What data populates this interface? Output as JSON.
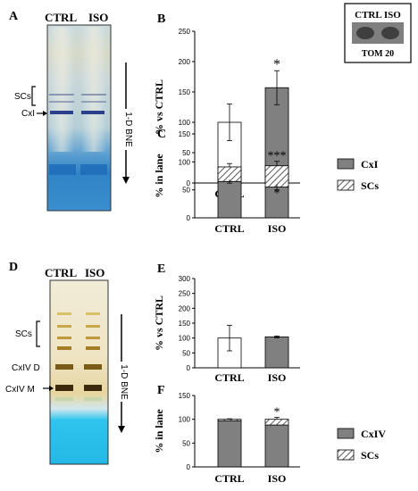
{
  "figure": {
    "panels": {
      "A": {
        "letter": "A",
        "lanes": [
          "CTRL",
          "ISO"
        ],
        "band_labels": [
          "SCs",
          "CxI"
        ],
        "axis_label": "1-D BNE"
      },
      "D": {
        "letter": "D",
        "lanes": [
          "CTRL",
          "ISO"
        ],
        "band_labels": [
          "SCs",
          "CxIV D",
          "CxIV M"
        ],
        "axis_label": "1-D BNE"
      },
      "inset": {
        "header": "CTRL ISO",
        "label": "TOM 20"
      }
    },
    "colors": {
      "ctrl_bar": "#ffffff",
      "iso_bar": "#808080",
      "stacked_base": "#808080",
      "gel_blue": "#2d88c8",
      "gel_cyan": "#1ab8e8"
    }
  },
  "chart_data": [
    {
      "panel": "B",
      "type": "bar",
      "categories": [
        "CTRL",
        "ISO"
      ],
      "values": [
        100,
        157
      ],
      "errors": [
        30,
        28
      ],
      "significance": [
        "",
        "*"
      ],
      "ylabel": "% vs CTRL",
      "yticks": [
        0,
        50,
        100,
        150,
        200,
        250
      ],
      "ylim": [
        0,
        250
      ]
    },
    {
      "panel": "C",
      "type": "bar",
      "stacked": true,
      "categories": [
        "CTRL",
        "ISO"
      ],
      "series": [
        {
          "name": "CxI",
          "values": [
            65,
            55
          ],
          "errors": [
            3,
            5
          ],
          "significance": [
            "",
            "*"
          ]
        },
        {
          "name": "SCs",
          "values": [
            26,
            38
          ],
          "errors": [
            6,
            8
          ],
          "significance": [
            "",
            "***"
          ]
        }
      ],
      "ylabel": "% in lane",
      "yticks": [
        0,
        50,
        100,
        150
      ],
      "ylim": [
        0,
        150
      ],
      "legend": "right"
    },
    {
      "panel": "E",
      "type": "bar",
      "categories": [
        "CTRL",
        "ISO"
      ],
      "values": [
        100,
        104
      ],
      "errors": [
        43,
        3
      ],
      "ylabel": "% vs CTRL",
      "yticks": [
        0,
        50,
        100,
        150,
        200,
        250,
        300
      ],
      "ylim": [
        0,
        300
      ]
    },
    {
      "panel": "F",
      "type": "bar",
      "stacked": true,
      "categories": [
        "CTRL",
        "ISO"
      ],
      "series": [
        {
          "name": "CxIV",
          "values": [
            97,
            88
          ],
          "errors": [
            0,
            0
          ],
          "significance": [
            "",
            ""
          ]
        },
        {
          "name": "SCs",
          "values": [
            3,
            12
          ],
          "errors": [
            1,
            4
          ],
          "significance": [
            "",
            "*"
          ]
        }
      ],
      "ylabel": "% in lane",
      "yticks": [
        0,
        50,
        100,
        150
      ],
      "ylim": [
        0,
        150
      ],
      "legend": "right"
    }
  ]
}
